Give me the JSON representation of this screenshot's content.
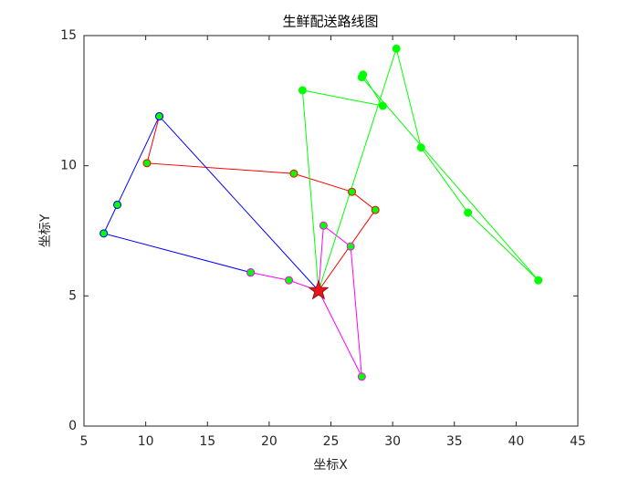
{
  "chart_data": {
    "type": "route",
    "title": "生鲜配送路线图",
    "x_label": "坐标X",
    "y_label": "坐标Y",
    "xlim": [
      5,
      45
    ],
    "ylim": [
      0,
      15
    ],
    "xticks": [
      5,
      10,
      15,
      20,
      25,
      30,
      35,
      40,
      45
    ],
    "yticks": [
      0,
      5,
      10,
      15
    ],
    "depot": {
      "x": 24,
      "y": 5.2,
      "color": "#e8141b"
    },
    "marker_fill": "#00ff00",
    "series": [
      {
        "color": "#ff0000",
        "x": [
          24,
          28.6,
          26.7,
          22.0,
          10.1,
          11.1
        ],
        "y": [
          5.2,
          8.3,
          9.0,
          9.7,
          10.1,
          11.9
        ]
      },
      {
        "color": "#0000ff",
        "x": [
          24,
          11.1,
          7.7,
          6.6,
          18.5
        ],
        "y": [
          5.2,
          11.9,
          8.5,
          7.4,
          5.9
        ]
      },
      {
        "color": "#ff00ff",
        "x": [
          18.5,
          21.6,
          24,
          24.4,
          26.6,
          27.5,
          24
        ],
        "y": [
          5.9,
          5.6,
          5.2,
          7.7,
          6.9,
          1.9,
          5.2
        ]
      },
      {
        "color": "#00ff00",
        "x": [
          24,
          22.7,
          29.2,
          27.6,
          27.5,
          41.8,
          36.1,
          32.3,
          30.3,
          24
        ],
        "y": [
          5.2,
          12.9,
          12.3,
          13.5,
          13.4,
          5.6,
          8.2,
          10.7,
          14.5,
          5.2
        ]
      }
    ]
  }
}
